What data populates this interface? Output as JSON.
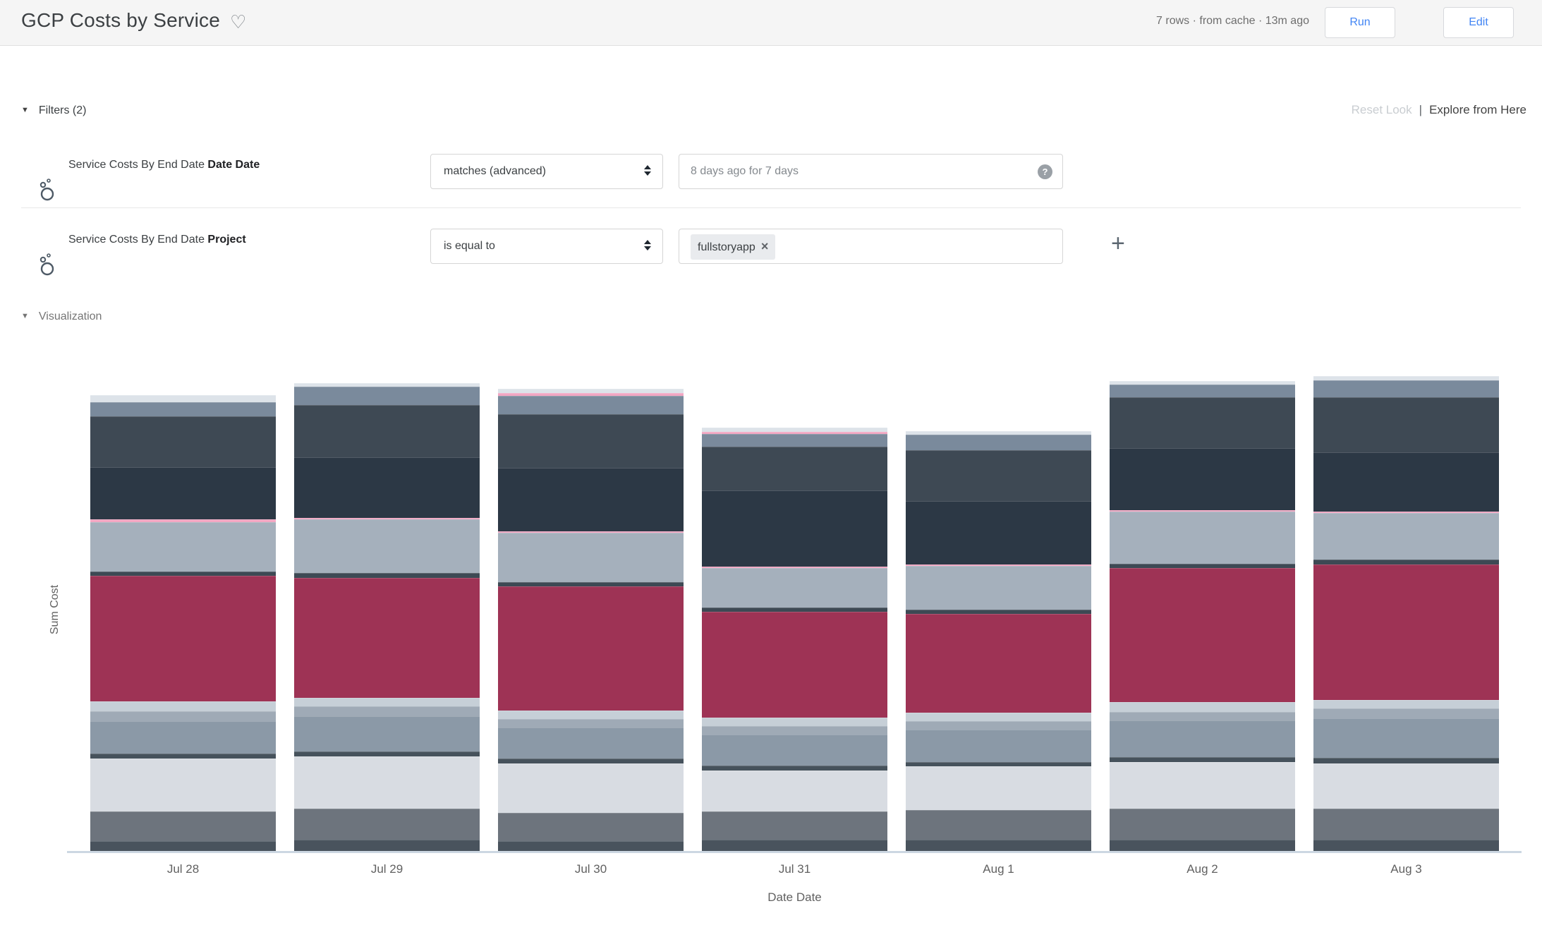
{
  "header": {
    "title": "GCP Costs by Service",
    "favorite_icon": "heart-outline",
    "status": "7 rows · from cache · 13m ago",
    "run_label": "Run",
    "edit_label": "Edit"
  },
  "top_links": {
    "reset_label": "Reset Look",
    "separator": "|",
    "explore_label": "Explore from Here"
  },
  "filters": {
    "section_label": "Filters (2)",
    "collapse_icon": "▼",
    "add_filter_label": "+",
    "rows": [
      {
        "field_prefix": "Service Costs By End Date",
        "field_name": "Date Date",
        "operator": "matches (advanced)",
        "value": "8 days ago for 7 days",
        "help_icon": "?"
      },
      {
        "field_prefix": "Service Costs By End Date",
        "field_name": "Project",
        "operator": "is equal to",
        "tag_value": "fullstoryapp",
        "tag_remove_icon": "×"
      }
    ]
  },
  "visualization": {
    "section_label": "Visualization",
    "collapse_icon": "▼"
  },
  "colors": {
    "accent_blue": "#4285f4",
    "header_bg": "#f5f5f5",
    "axis_line": "#ccd7e2",
    "maroon": "#9e3355",
    "pink": "#f2a6c2"
  },
  "chart_data": {
    "type": "bar",
    "stacked": true,
    "title": "",
    "xlabel": "Date Date",
    "ylabel": "Sum Cost",
    "categories": [
      "Jul 28",
      "Jul 29",
      "Jul 30",
      "Jul 31",
      "Aug 1",
      "Aug 2",
      "Aug 3"
    ],
    "legend": "none visible",
    "y_axis_ticks": "none visible",
    "values_note": "no numeric axis shown; values are relative stacked heights (px), series listed bottom to top, names derived from segment colors",
    "series": [
      {
        "name": "dark-slate-bottom",
        "color": "#49535d",
        "values": [
          14,
          16,
          14,
          16,
          16,
          16,
          16
        ]
      },
      {
        "name": "medium-gray",
        "color": "#6d747d",
        "values": [
          42,
          44,
          40,
          40,
          42,
          44,
          44
        ]
      },
      {
        "name": "off-white",
        "color": "#d8dce2",
        "values": [
          75,
          74,
          70,
          58,
          62,
          66,
          64
        ]
      },
      {
        "name": "dark-line",
        "color": "#46525c",
        "values": [
          7,
          7,
          7,
          7,
          6,
          7,
          8
        ]
      },
      {
        "name": "slate-blue",
        "color": "#8b99a7",
        "values": [
          46,
          50,
          44,
          44,
          46,
          52,
          56
        ]
      },
      {
        "name": "light-slate",
        "color": "#9faab6",
        "values": [
          14,
          14,
          12,
          12,
          12,
          12,
          14
        ]
      },
      {
        "name": "pale-gray",
        "color": "#c6cfd7",
        "values": [
          14,
          12,
          12,
          12,
          12,
          14,
          12
        ]
      },
      {
        "name": "maroon",
        "color": "#9e3355",
        "values": [
          178,
          170,
          176,
          150,
          140,
          190,
          192
        ]
      },
      {
        "name": "dark-line-2",
        "color": "#3d4954",
        "values": [
          6,
          7,
          6,
          6,
          6,
          6,
          7
        ]
      },
      {
        "name": "blue-gray",
        "color": "#a5b0bc",
        "values": [
          70,
          76,
          70,
          56,
          62,
          74,
          66
        ]
      },
      {
        "name": "pink",
        "color": "#f2a6c2",
        "values": [
          4,
          2,
          2,
          2,
          2,
          2,
          2
        ]
      },
      {
        "name": "dark-navy",
        "color": "#2c3845",
        "values": [
          74,
          86,
          90,
          108,
          90,
          88,
          84
        ]
      },
      {
        "name": "dark-slate",
        "color": "#3e4954",
        "values": [
          72,
          74,
          76,
          62,
          72,
          72,
          78
        ]
      },
      {
        "name": "slate-gray",
        "color": "#7a8a9c",
        "values": [
          20,
          26,
          26,
          18,
          22,
          18,
          24
        ]
      },
      {
        "name": "pink-top",
        "color": "#f2a6c2",
        "values": [
          0,
          0,
          4,
          3,
          0,
          0,
          0
        ]
      },
      {
        "name": "light-strip-top",
        "color": "#dde3e9",
        "values": [
          10,
          5,
          6,
          6,
          5,
          5,
          6
        ]
      }
    ]
  }
}
